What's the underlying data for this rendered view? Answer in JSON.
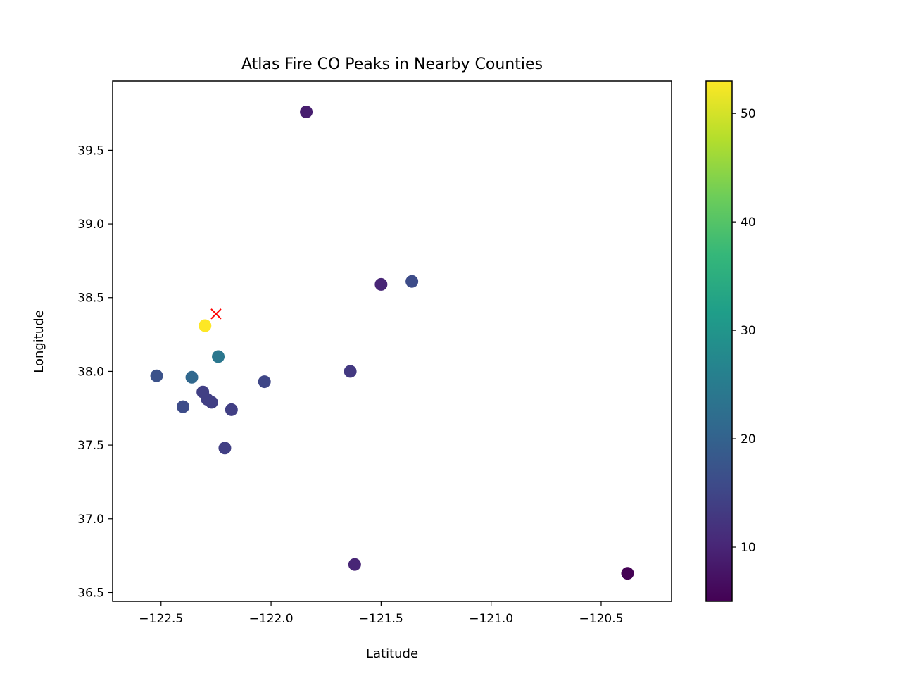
{
  "chart_data": {
    "type": "scatter",
    "title": "Atlas Fire CO Peaks in Nearby Counties",
    "xlabel": "Latitude",
    "ylabel": "Longitude",
    "xlim": [
      -122.72,
      -120.18
    ],
    "ylim": [
      36.44,
      39.97
    ],
    "xticks": [
      -122.5,
      -122.0,
      -121.5,
      -121.0,
      -120.5
    ],
    "xtick_labels": [
      "−122.5",
      "−122.0",
      "−121.5",
      "−121.0",
      "−120.5"
    ],
    "yticks": [
      36.5,
      37.0,
      37.5,
      38.0,
      38.5,
      39.0,
      39.5
    ],
    "ytick_labels": [
      "36.5",
      "37.0",
      "37.5",
      "38.0",
      "38.5",
      "39.0",
      "39.5"
    ],
    "colormap": "viridis",
    "color_range": [
      5,
      53
    ],
    "colorbar_ticks": [
      10,
      20,
      30,
      40,
      50
    ],
    "grid": false,
    "points": [
      {
        "x": -121.84,
        "y": 39.76,
        "value": 9
      },
      {
        "x": -121.5,
        "y": 38.59,
        "value": 10
      },
      {
        "x": -121.36,
        "y": 38.61,
        "value": 16
      },
      {
        "x": -122.3,
        "y": 38.31,
        "value": 53
      },
      {
        "x": -122.24,
        "y": 38.1,
        "value": 24
      },
      {
        "x": -122.52,
        "y": 37.97,
        "value": 17
      },
      {
        "x": -122.36,
        "y": 37.96,
        "value": 21
      },
      {
        "x": -122.31,
        "y": 37.86,
        "value": 14
      },
      {
        "x": -122.29,
        "y": 37.81,
        "value": 14
      },
      {
        "x": -122.27,
        "y": 37.79,
        "value": 14
      },
      {
        "x": -122.4,
        "y": 37.76,
        "value": 16
      },
      {
        "x": -122.18,
        "y": 37.74,
        "value": 14
      },
      {
        "x": -122.03,
        "y": 37.93,
        "value": 15
      },
      {
        "x": -121.64,
        "y": 38.0,
        "value": 13
      },
      {
        "x": -122.21,
        "y": 37.48,
        "value": 14
      },
      {
        "x": -121.62,
        "y": 36.69,
        "value": 10
      },
      {
        "x": -120.38,
        "y": 36.63,
        "value": 5
      }
    ],
    "markers": [
      {
        "x": -122.25,
        "y": 38.39,
        "symbol": "x",
        "color": "#ff0000"
      }
    ]
  }
}
